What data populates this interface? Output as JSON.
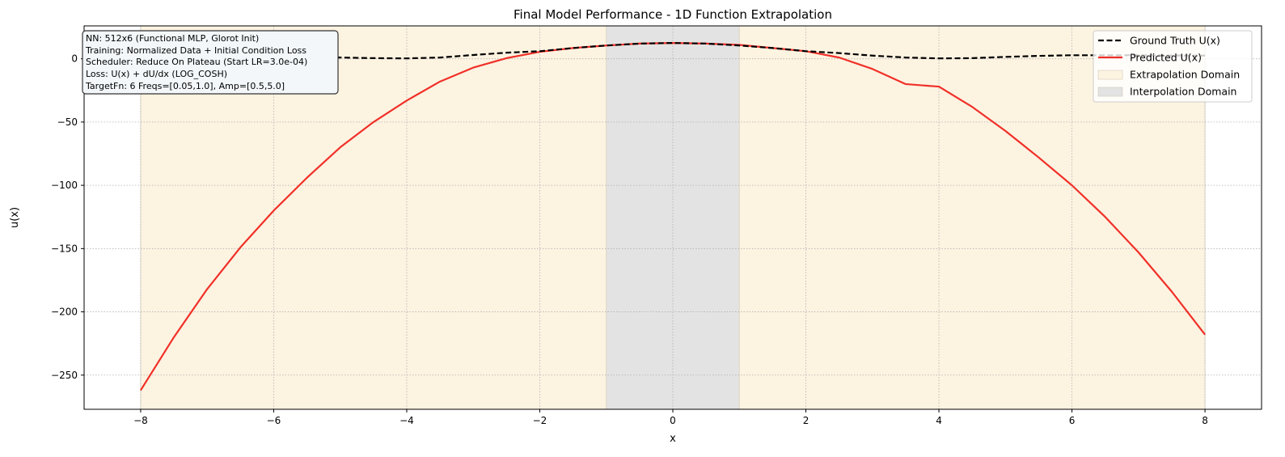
{
  "chart_data": {
    "type": "line",
    "title": "Final Model Performance - 1D Function Extrapolation",
    "xlabel": "x",
    "ylabel": "u(x)",
    "xlim": [
      -8.85,
      8.85
    ],
    "ylim": [
      -277,
      26
    ],
    "x_ticks": [
      -8,
      -6,
      -4,
      -2,
      0,
      2,
      4,
      6,
      8
    ],
    "x_tick_labels": [
      "−8",
      "−6",
      "−4",
      "−2",
      "0",
      "2",
      "4",
      "6",
      "8"
    ],
    "y_ticks": [
      0,
      -50,
      -100,
      -150,
      -200,
      -250
    ],
    "y_tick_labels": [
      "0",
      "−50",
      "−100",
      "−150",
      "−200",
      "−250"
    ],
    "grid": true,
    "legend_position": "top-right",
    "regions": [
      {
        "name": "Extrapolation Domain",
        "x_range": [
          -8,
          8
        ],
        "color": "#fdf3e1"
      },
      {
        "name": "Interpolation Domain",
        "x_range": [
          -1,
          1
        ],
        "color": "#e3e3e3"
      }
    ],
    "series": [
      {
        "name": "Ground Truth U(x)",
        "style": "dashed",
        "color": "#000000",
        "x": [
          -8,
          -7.5,
          -7,
          -6.5,
          -6,
          -5.5,
          -5,
          -4.5,
          -4,
          -3.5,
          -3,
          -2.5,
          -2,
          -1.5,
          -1,
          -0.5,
          0,
          0.5,
          1,
          1.5,
          2,
          2.5,
          3,
          3.5,
          4,
          4.5,
          5,
          5.5,
          6,
          6.5,
          7,
          7.5,
          8
        ],
        "y": [
          3.0,
          3.0,
          3.0,
          2.8,
          2.5,
          2.0,
          1.0,
          0.5,
          0.3,
          1.0,
          3.0,
          4.8,
          6.0,
          8.5,
          10.5,
          12.0,
          12.5,
          12.0,
          10.5,
          8.5,
          6.0,
          4.5,
          2.5,
          1.0,
          0.3,
          0.5,
          1.5,
          2.3,
          2.8,
          2.8,
          2.8,
          2.6,
          2.5
        ]
      },
      {
        "name": "Predicted U(x)",
        "style": "solid",
        "color": "#f03028",
        "x": [
          -8,
          -7.5,
          -7,
          -6.5,
          -6,
          -5.5,
          -5,
          -4.5,
          -4,
          -3.5,
          -3,
          -2.5,
          -2,
          -1.5,
          -1,
          -0.5,
          0,
          0.5,
          1,
          1.5,
          2,
          2.5,
          3,
          3.5,
          4,
          4.5,
          5,
          5.5,
          6,
          6.5,
          7,
          7.5,
          8
        ],
        "y": [
          -262,
          -220,
          -182,
          -149,
          -120,
          -94,
          -70,
          -50,
          -33,
          -18,
          -7,
          0.5,
          5.5,
          8.5,
          10.5,
          12,
          12.5,
          12,
          11,
          8.5,
          6,
          1,
          -8,
          -20,
          -22,
          -38,
          -57,
          -78,
          -100,
          -125,
          -153,
          -184,
          -218
        ]
      }
    ]
  },
  "info_box": {
    "lines": [
      "NN: 512x6 (Functional MLP, Glorot Init)",
      "Training: Normalized Data + Initial Condition Loss",
      "Scheduler: Reduce On Plateau (Start LR=3.0e-04)",
      "Loss: U(x) + dU/dx (LOG_COSH)",
      "TargetFn: 6 Freqs=[0.05,1.0], Amp=[0.5,5.0]"
    ]
  },
  "legend": {
    "items": [
      {
        "label": "Ground Truth U(x)",
        "kind": "line-dashed",
        "color": "#000000"
      },
      {
        "label": "Predicted U(x)",
        "kind": "line",
        "color": "#f03028"
      },
      {
        "label": "Extrapolation Domain",
        "kind": "patch",
        "color": "#fdf3e1"
      },
      {
        "label": "Interpolation Domain",
        "kind": "patch",
        "color": "#e3e3e3"
      }
    ]
  }
}
